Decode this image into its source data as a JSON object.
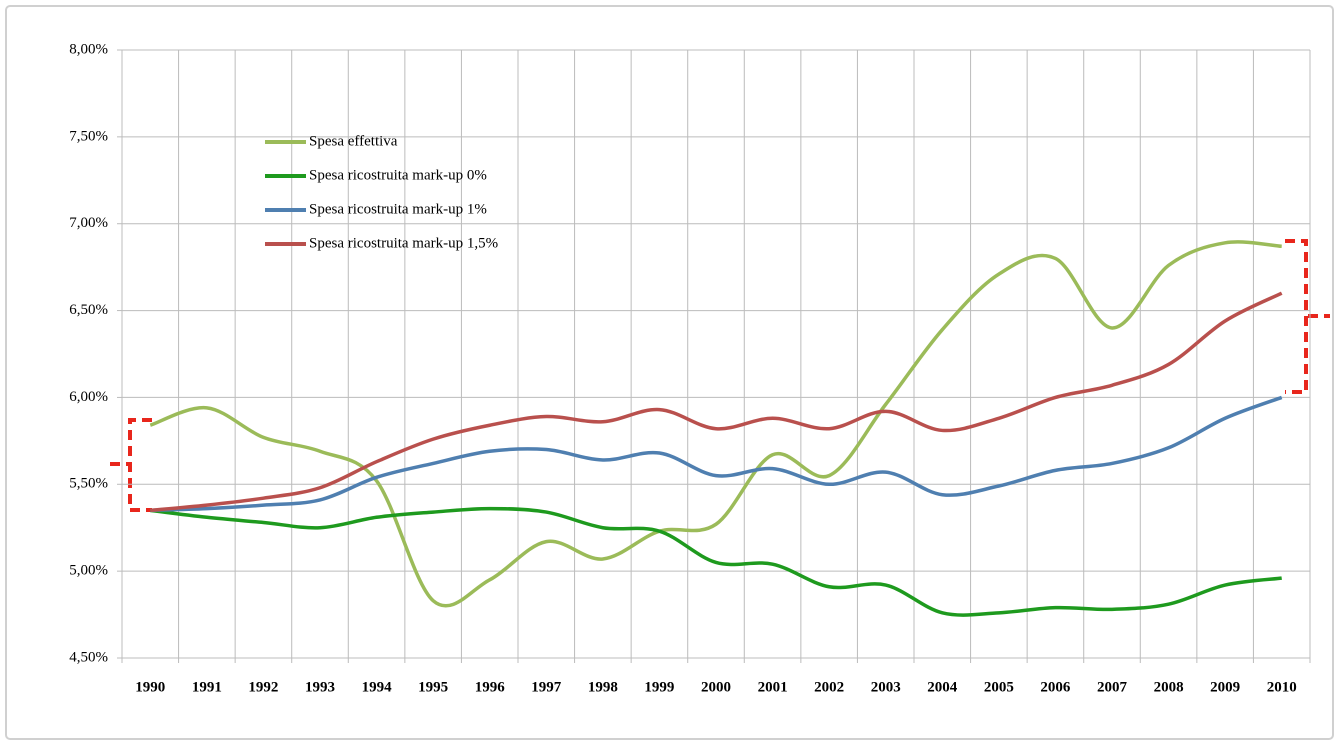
{
  "chart_data": {
    "type": "line",
    "categories": [
      "1990",
      "1991",
      "1992",
      "1993",
      "1994",
      "1995",
      "1996",
      "1997",
      "1998",
      "1999",
      "2000",
      "2001",
      "2002",
      "2003",
      "2004",
      "2005",
      "2006",
      "2007",
      "2008",
      "2009",
      "2010"
    ],
    "series": [
      {
        "name": "Spesa effettiva",
        "color": "#9bbb59",
        "values": [
          5.84,
          5.94,
          5.77,
          5.69,
          5.52,
          4.83,
          4.95,
          5.17,
          5.07,
          5.23,
          5.27,
          5.67,
          5.55,
          5.96,
          6.39,
          6.71,
          6.8,
          6.4,
          6.76,
          6.89,
          6.87
        ]
      },
      {
        "name": "Spesa ricostruita mark-up 0%",
        "color": "#1e9a1e",
        "values": [
          5.35,
          5.31,
          5.28,
          5.25,
          5.31,
          5.34,
          5.36,
          5.34,
          5.25,
          5.23,
          5.05,
          5.04,
          4.91,
          4.92,
          4.76,
          4.76,
          4.79,
          4.78,
          4.81,
          4.92,
          4.96
        ]
      },
      {
        "name": "Spesa ricostruita mark-up 1%",
        "color": "#4f7fb0",
        "values": [
          5.35,
          5.36,
          5.38,
          5.41,
          5.54,
          5.62,
          5.69,
          5.7,
          5.64,
          5.68,
          5.55,
          5.59,
          5.5,
          5.57,
          5.44,
          5.49,
          5.58,
          5.62,
          5.71,
          5.88,
          6.0
        ]
      },
      {
        "name": "Spesa ricostruita mark-up 1,5%",
        "color": "#b9504d",
        "values": [
          5.35,
          5.38,
          5.42,
          5.48,
          5.63,
          5.76,
          5.84,
          5.89,
          5.86,
          5.93,
          5.82,
          5.88,
          5.82,
          5.92,
          5.81,
          5.88,
          6.0,
          6.07,
          6.19,
          6.44,
          6.6
        ]
      }
    ],
    "ylim": [
      4.5,
      8.0
    ],
    "yticks": [
      {
        "value": 4.5,
        "label": "4,50%"
      },
      {
        "value": 5.0,
        "label": "5,00%"
      },
      {
        "value": 5.5,
        "label": "5,50%"
      },
      {
        "value": 6.0,
        "label": "6,00%"
      },
      {
        "value": 6.5,
        "label": "6,50%"
      },
      {
        "value": 7.0,
        "label": "7,00%"
      },
      {
        "value": 7.5,
        "label": "7,50%"
      },
      {
        "value": 8.0,
        "label": "8,00%"
      }
    ],
    "grid": true
  }
}
